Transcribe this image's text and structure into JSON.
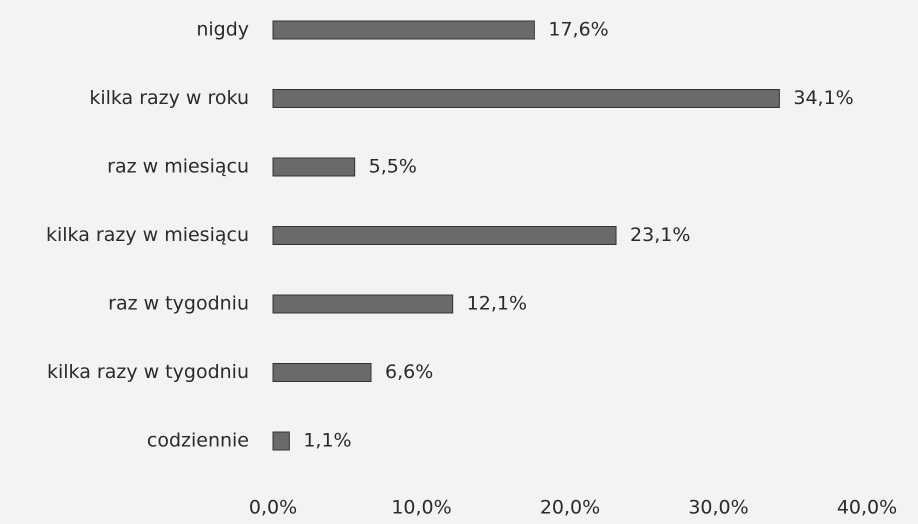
{
  "chart_data": {
    "type": "bar",
    "orientation": "horizontal",
    "categories": [
      "nigdy",
      "kilka razy w roku",
      "raz w miesiącu",
      "kilka razy w miesiącu",
      "raz w tygodniu",
      "kilka razy w tygodniu",
      "codziennie"
    ],
    "values": [
      17.6,
      34.1,
      5.5,
      23.1,
      12.1,
      6.6,
      1.1
    ],
    "value_labels": [
      "17,6%",
      "34,1%",
      "5,5%",
      "23,1%",
      "12,1%",
      "6,6%",
      "1,1%"
    ],
    "color": "#6a6a6a",
    "xlim": [
      0,
      40
    ],
    "xticks": [
      {
        "value": 0,
        "label": "0,0%"
      },
      {
        "value": 10,
        "label": "10,0%"
      },
      {
        "value": 20,
        "label": "20,0%"
      },
      {
        "value": 30,
        "label": "30,0%"
      },
      {
        "value": 40,
        "label": "40,0%"
      }
    ],
    "grid": false
  }
}
